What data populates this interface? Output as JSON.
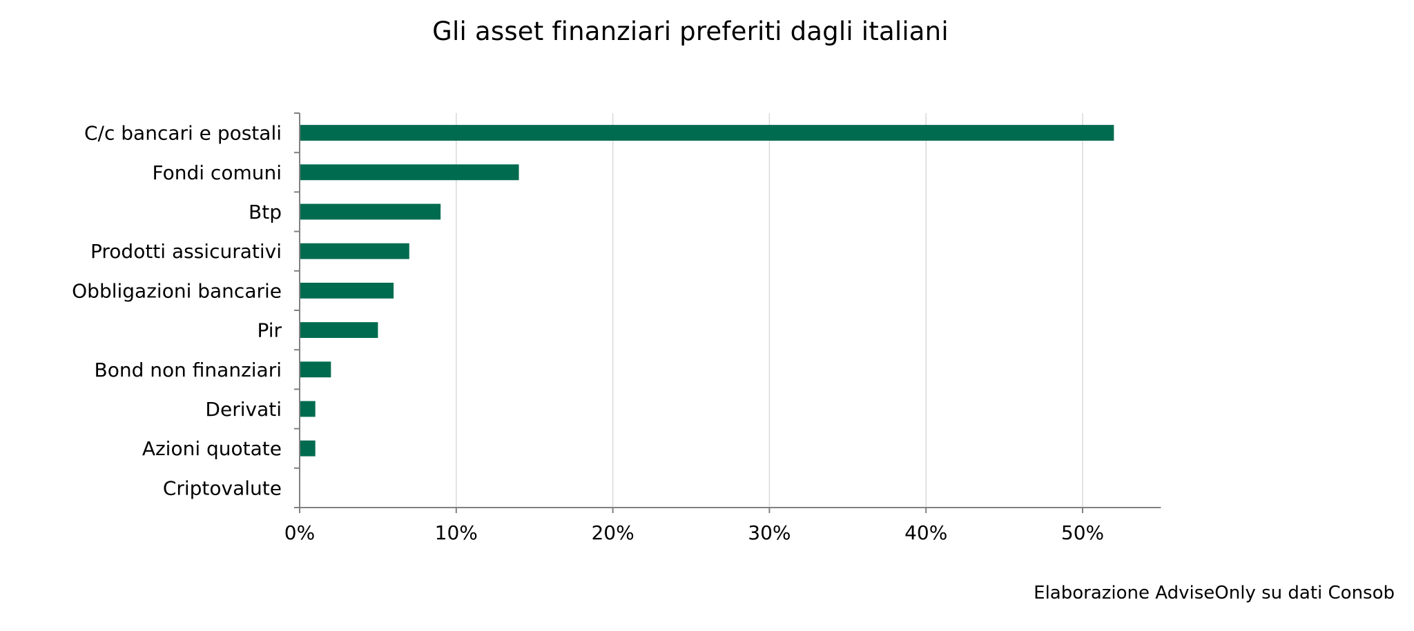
{
  "chart_data": {
    "type": "bar",
    "orientation": "horizontal",
    "title": "Gli asset finanziari preferiti dagli italiani",
    "source": "Elaborazione AdviseOnly su dati Consob",
    "categories": [
      "C/c bancari e postali",
      "Fondi comuni",
      "Btp",
      "Prodotti assicurativi",
      "Obbligazioni bancarie",
      "Pir",
      "Bond non finanziari",
      "Derivati",
      "Azioni quotate",
      "Criptovalute"
    ],
    "values": [
      52,
      14,
      9,
      7,
      6,
      5,
      2,
      1,
      1,
      0
    ],
    "xlim": [
      0,
      55
    ],
    "xticks": [
      0,
      10,
      20,
      30,
      40,
      50
    ],
    "xtick_labels": [
      "0%",
      "10%",
      "20%",
      "30%",
      "40%",
      "50%"
    ],
    "xlabel": "",
    "ylabel": "",
    "grid": "vertical",
    "legend": "none",
    "colors": {
      "bar": "#006b4f",
      "grid": "#d9d9d9",
      "axis": "#808080"
    }
  }
}
